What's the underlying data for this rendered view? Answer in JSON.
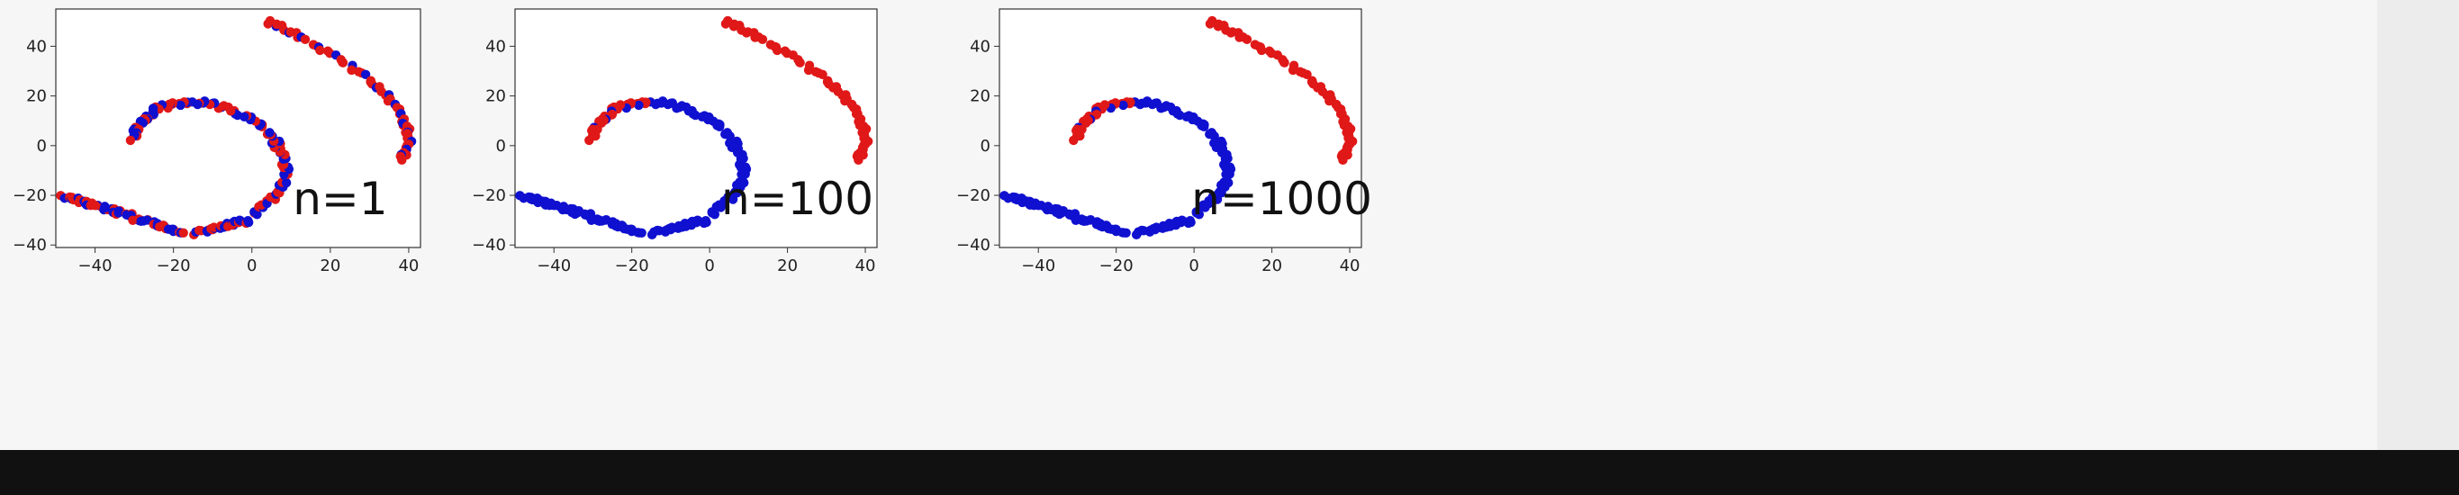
{
  "chart_data": [
    {
      "type": "scatter",
      "annotation": "n=1",
      "xlim": [
        -50,
        43
      ],
      "ylim": [
        -41,
        55
      ],
      "xticks": [
        -40,
        -20,
        0,
        20,
        40
      ],
      "yticks": [
        -40,
        -20,
        0,
        20,
        40
      ],
      "colors": {
        "class_a": "#1010d0",
        "class_b": "#e01818"
      },
      "mix": "interleaved",
      "series": [
        {
          "class": "a",
          "x": [
            -48,
            -46,
            -43,
            -40,
            -37,
            -33,
            -30,
            -27,
            -24,
            -22,
            -18,
            -15,
            -12,
            -9,
            -7,
            -4,
            -2,
            1,
            3,
            5,
            6,
            7,
            8,
            9,
            8,
            6,
            3,
            1,
            -3,
            -8,
            -12,
            -16,
            -20,
            -23,
            -26,
            -28,
            -30,
            -31,
            -32,
            5,
            9,
            14,
            19,
            24,
            29,
            33,
            36,
            38,
            40,
            41,
            40,
            38
          ],
          "y": [
            -20,
            -21,
            -23,
            -25,
            -26,
            -28,
            -29,
            -30,
            -32,
            -33,
            -35,
            -36,
            -35,
            -34,
            -33,
            -31,
            -28,
            -26,
            -22,
            -18,
            -14,
            -10,
            -6,
            -2,
            2,
            6,
            9,
            12,
            14,
            16,
            17,
            17,
            17,
            15,
            13,
            10,
            7,
            4,
            2,
            50,
            47,
            43,
            38,
            34,
            29,
            24,
            19,
            13,
            8,
            4,
            0,
            -6
          ]
        }
      ]
    },
    {
      "type": "scatter",
      "annotation": "n=100",
      "xlim": [
        -50,
        43
      ],
      "ylim": [
        -41,
        55
      ],
      "xticks": [
        -40,
        -20,
        0,
        20,
        40
      ],
      "yticks": [
        -40,
        -20,
        0,
        20,
        40
      ],
      "colors": {
        "class_a": "#1010d0",
        "class_b": "#e01818"
      },
      "mix": "separated"
    },
    {
      "type": "scatter",
      "annotation": "n=1000",
      "xlim": [
        -50,
        43
      ],
      "ylim": [
        -41,
        55
      ],
      "xticks": [
        -40,
        -20,
        0,
        20,
        40
      ],
      "yticks": [
        -40,
        -20,
        0,
        20,
        40
      ],
      "colors": {
        "class_a": "#1010d0",
        "class_b": "#e01818"
      },
      "mix": "separated"
    }
  ]
}
